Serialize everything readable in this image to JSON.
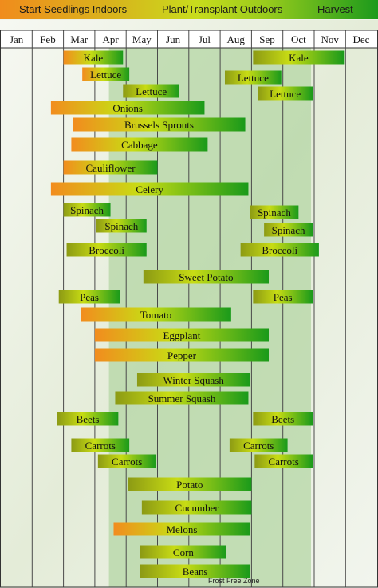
{
  "legend": {
    "start": "Start Seedlings Indoors",
    "plant": "Plant/Transplant Outdoors",
    "harvest": "Harvest"
  },
  "colors": {
    "start": "#f28c1e",
    "plant": "#c8dc14",
    "harvest": "#1a9a1a",
    "frost_zone": "#b4d6a4"
  },
  "zone_label": "Frost Free Zone",
  "chart_data": {
    "type": "gantt",
    "months": [
      "Jan",
      "Feb",
      "Mar",
      "Apr",
      "May",
      "Jun",
      "Jul",
      "Aug",
      "Sep",
      "Oct",
      "Nov",
      "Dec"
    ],
    "frost_free_zone": {
      "from": 3.45,
      "to": 9.9
    },
    "series": [
      {
        "label": "Kale",
        "from": 2.0,
        "to": 3.9,
        "scheme": "start"
      },
      {
        "label": "Kale",
        "from": 8.05,
        "to": 10.95,
        "scheme": "plant"
      },
      {
        "label": "Lettuce",
        "from": 2.6,
        "to": 4.1,
        "scheme": "start"
      },
      {
        "label": "Lettuce",
        "from": 3.9,
        "to": 5.7,
        "scheme": "plant"
      },
      {
        "label": "Lettuce",
        "from": 7.15,
        "to": 8.95,
        "scheme": "plant"
      },
      {
        "label": "Lettuce",
        "from": 8.2,
        "to": 9.95,
        "scheme": "plant"
      },
      {
        "label": "Onions",
        "from": 1.6,
        "to": 6.5,
        "scheme": "start"
      },
      {
        "label": "Brussels Sprouts",
        "from": 2.3,
        "to": 7.8,
        "scheme": "start"
      },
      {
        "label": "Cabbage",
        "from": 2.25,
        "to": 6.6,
        "scheme": "start"
      },
      {
        "label": "Cauliflower",
        "from": 2.0,
        "to": 5.0,
        "scheme": "start"
      },
      {
        "label": "Celery",
        "from": 1.6,
        "to": 7.9,
        "scheme": "start"
      },
      {
        "label": "Spinach",
        "from": 2.0,
        "to": 3.5,
        "scheme": "plant"
      },
      {
        "label": "Spinach",
        "from": 3.05,
        "to": 4.65,
        "scheme": "plant"
      },
      {
        "label": "Spinach",
        "from": 7.95,
        "to": 9.5,
        "scheme": "plant"
      },
      {
        "label": "Spinach",
        "from": 8.4,
        "to": 9.95,
        "scheme": "plant"
      },
      {
        "label": "Broccoli",
        "from": 2.1,
        "to": 4.65,
        "scheme": "plant"
      },
      {
        "label": "Broccoli",
        "from": 7.65,
        "to": 10.15,
        "scheme": "plant"
      },
      {
        "label": "Sweet Potato",
        "from": 4.55,
        "to": 8.55,
        "scheme": "plant"
      },
      {
        "label": "Peas",
        "from": 1.85,
        "to": 3.8,
        "scheme": "plant"
      },
      {
        "label": "Peas",
        "from": 8.05,
        "to": 9.95,
        "scheme": "plant"
      },
      {
        "label": "Tomato",
        "from": 2.55,
        "to": 7.35,
        "scheme": "start"
      },
      {
        "label": "Eggplant",
        "from": 3.0,
        "to": 8.55,
        "scheme": "start"
      },
      {
        "label": "Pepper",
        "from": 3.0,
        "to": 8.55,
        "scheme": "start"
      },
      {
        "label": "Winter Squash",
        "from": 4.35,
        "to": 7.95,
        "scheme": "plant"
      },
      {
        "label": "Summer Squash",
        "from": 3.65,
        "to": 7.9,
        "scheme": "plant"
      },
      {
        "label": "Beets",
        "from": 1.8,
        "to": 3.75,
        "scheme": "plant"
      },
      {
        "label": "Beets",
        "from": 8.05,
        "to": 9.95,
        "scheme": "plant"
      },
      {
        "label": "Carrots",
        "from": 2.25,
        "to": 4.1,
        "scheme": "plant"
      },
      {
        "label": "Carrots",
        "from": 3.1,
        "to": 4.95,
        "scheme": "plant"
      },
      {
        "label": "Carrots",
        "from": 7.3,
        "to": 9.15,
        "scheme": "plant"
      },
      {
        "label": "Carrots",
        "from": 8.1,
        "to": 9.95,
        "scheme": "plant"
      },
      {
        "label": "Potato",
        "from": 4.05,
        "to": 8.0,
        "scheme": "plant"
      },
      {
        "label": "Cucumber",
        "from": 4.5,
        "to": 8.0,
        "scheme": "plant"
      },
      {
        "label": "Melons",
        "from": 3.6,
        "to": 7.95,
        "scheme": "start"
      },
      {
        "label": "Corn",
        "from": 4.45,
        "to": 7.2,
        "scheme": "plant"
      },
      {
        "label": "Beans",
        "from": 4.45,
        "to": 7.95,
        "scheme": "plant"
      }
    ]
  }
}
